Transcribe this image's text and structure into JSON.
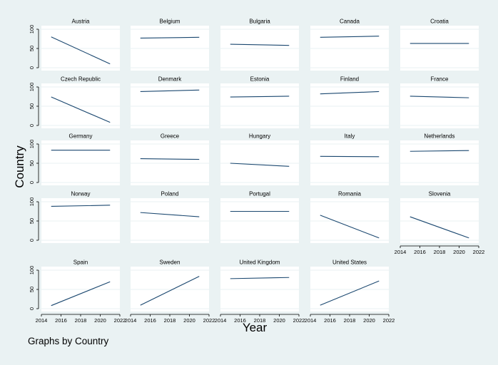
{
  "chart_data": {
    "type": "line",
    "layout": "small-multiples",
    "xlabel": "Year",
    "ylabel": "Country",
    "note": "Graphs by Country",
    "xlim": [
      2014,
      2022
    ],
    "ylim": [
      0,
      100
    ],
    "x_ticks": [
      2014,
      2016,
      2018,
      2020,
      2022
    ],
    "y_ticks": [
      0,
      50,
      100
    ],
    "grid": true,
    "line_color": "#1a476f",
    "background_color": "#eaf2f3",
    "panels": [
      {
        "name": "Austria",
        "x": [
          2015,
          2021
        ],
        "y": [
          80,
          10
        ]
      },
      {
        "name": "Belgium",
        "x": [
          2015,
          2021
        ],
        "y": [
          77,
          79
        ]
      },
      {
        "name": "Bulgaria",
        "x": [
          2015,
          2021
        ],
        "y": [
          61,
          58
        ]
      },
      {
        "name": "Canada",
        "x": [
          2015,
          2021
        ],
        "y": [
          79,
          82
        ]
      },
      {
        "name": "Croatia",
        "x": [
          2015,
          2021
        ],
        "y": [
          63,
          63
        ]
      },
      {
        "name": "Czech Republic",
        "x": [
          2015,
          2021
        ],
        "y": [
          74,
          8
        ]
      },
      {
        "name": "Denmark",
        "x": [
          2015,
          2021
        ],
        "y": [
          88,
          92
        ]
      },
      {
        "name": "Estonia",
        "x": [
          2015,
          2021
        ],
        "y": [
          74,
          76
        ]
      },
      {
        "name": "Finland",
        "x": [
          2015,
          2021
        ],
        "y": [
          82,
          88
        ]
      },
      {
        "name": "France",
        "x": [
          2015,
          2021
        ],
        "y": [
          76,
          72
        ]
      },
      {
        "name": "Germany",
        "x": [
          2015,
          2021
        ],
        "y": [
          84,
          84
        ]
      },
      {
        "name": "Greece",
        "x": [
          2015,
          2021
        ],
        "y": [
          62,
          60
        ]
      },
      {
        "name": "Hungary",
        "x": [
          2015,
          2021
        ],
        "y": [
          50,
          42
        ]
      },
      {
        "name": "Italy",
        "x": [
          2015,
          2021
        ],
        "y": [
          68,
          67
        ]
      },
      {
        "name": "Netherlands",
        "x": [
          2015,
          2021
        ],
        "y": [
          81,
          83
        ]
      },
      {
        "name": "Norway",
        "x": [
          2015,
          2021
        ],
        "y": [
          88,
          91
        ]
      },
      {
        "name": "Poland",
        "x": [
          2015,
          2021
        ],
        "y": [
          72,
          61
        ]
      },
      {
        "name": "Portugal",
        "x": [
          2015,
          2021
        ],
        "y": [
          75,
          75
        ]
      },
      {
        "name": "Romania",
        "x": [
          2015,
          2021
        ],
        "y": [
          65,
          6
        ]
      },
      {
        "name": "Slovenia",
        "x": [
          2015,
          2021
        ],
        "y": [
          61,
          6
        ]
      },
      {
        "name": "Spain",
        "x": [
          2015,
          2021
        ],
        "y": [
          8,
          70
        ]
      },
      {
        "name": "Sweden",
        "x": [
          2015,
          2021
        ],
        "y": [
          9,
          84
        ]
      },
      {
        "name": "United Kingdom",
        "x": [
          2015,
          2021
        ],
        "y": [
          78,
          81
        ]
      },
      {
        "name": "United States",
        "x": [
          2015,
          2021
        ],
        "y": [
          9,
          72
        ]
      }
    ]
  }
}
